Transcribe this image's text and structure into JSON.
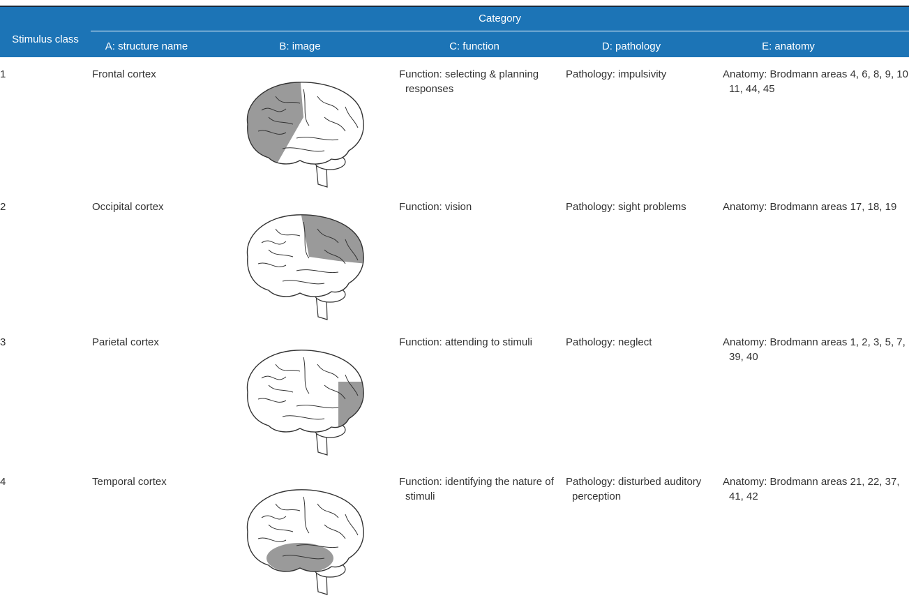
{
  "header": {
    "stimulus_class": "Stimulus class",
    "category": "Category",
    "columns": [
      "A: structure name",
      "B: image",
      "C: function",
      "D: pathology",
      "E: anatomy"
    ]
  },
  "rows": [
    {
      "class": "1",
      "structure": "Frontal cortex",
      "function": "Function: selecting & planning responses",
      "pathology": "Pathology: impulsivity",
      "anatomy": "Anatomy: Brodmann areas 4, 6, 8, 9, 10, 11, 44, 45"
    },
    {
      "class": "2",
      "structure": "Occipital cortex",
      "function": "Function: vision",
      "pathology": "Pathology: sight problems",
      "anatomy": "Anatomy: Brodmann areas 17, 18, 19"
    },
    {
      "class": "3",
      "structure": "Parietal cortex",
      "function": "Function: attending to stimuli",
      "pathology": "Pathology: neglect",
      "anatomy": "Anatomy: Brodmann areas 1, 2, 3, 5, 7, 39, 40"
    },
    {
      "class": "4",
      "structure": "Temporal cortex",
      "function": "Function: identifying the nature of stimuli",
      "pathology": "Pathology: disturbed auditory perception",
      "anatomy": "Anatomy: Brodmann areas 21, 22, 37, 41, 42"
    }
  ]
}
